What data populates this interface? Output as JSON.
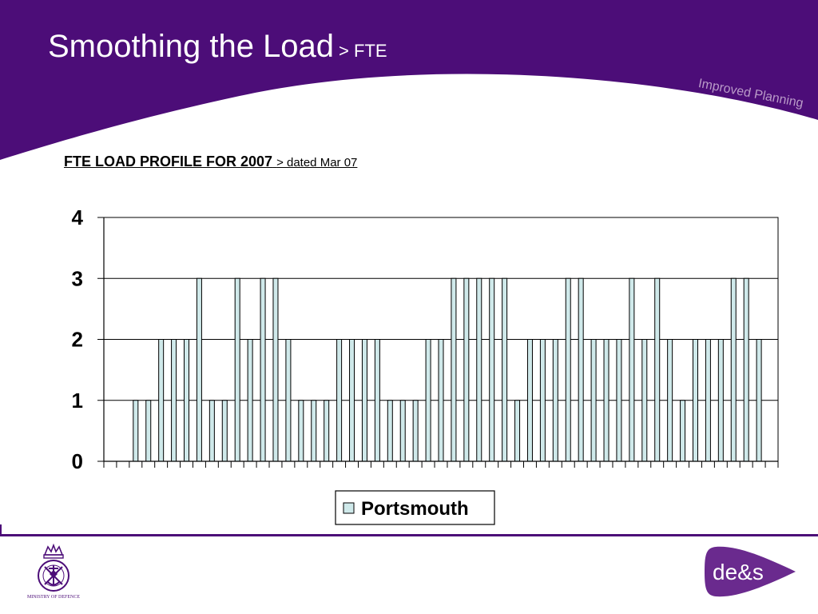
{
  "slide": {
    "title": "Smoothing the Load",
    "title_suffix": "> FTE",
    "tagline": "Improved Planning",
    "chart_heading": "FTE LOAD PROFILE FOR 2007",
    "chart_heading_suffix": "> dated Mar 07"
  },
  "footer": {
    "crest_caption": "MINISTRY OF DEFENCE",
    "logo_text": "de&s"
  },
  "colors": {
    "brand_purple": "#4c0d78",
    "bar_fill": "#cfe9ea",
    "tagline": "#b99ac8"
  },
  "chart_data": {
    "type": "bar",
    "title": "",
    "xlabel": "",
    "ylabel": "",
    "ylim": [
      0,
      4
    ],
    "yticks": [
      "0",
      "1",
      "2",
      "3",
      "4"
    ],
    "grid": true,
    "legend_position": "bottom",
    "series": [
      {
        "name": "Portsmouth",
        "color": "#cfe9ea",
        "values": [
          0,
          0,
          1,
          1,
          2,
          2,
          2,
          3,
          1,
          1,
          3,
          2,
          3,
          3,
          2,
          1,
          1,
          1,
          2,
          2,
          2,
          2,
          1,
          1,
          1,
          2,
          2,
          3,
          3,
          3,
          3,
          3,
          1,
          2,
          2,
          2,
          3,
          3,
          2,
          2,
          2,
          3,
          2,
          3,
          2,
          1,
          2,
          2,
          2,
          3,
          3,
          2,
          0
        ]
      }
    ]
  }
}
